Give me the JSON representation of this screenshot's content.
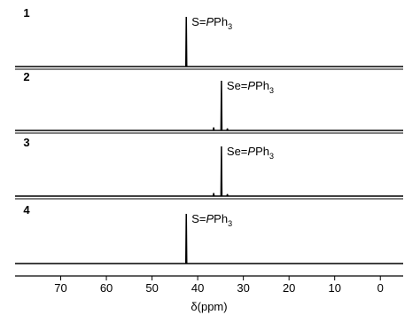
{
  "chart_data": {
    "type": "line",
    "xlabel": "δ(ppm)",
    "xlim": [
      80,
      -5
    ],
    "ylim": [
      0,
      1
    ],
    "xticks": [
      70,
      60,
      50,
      40,
      30,
      20,
      10,
      0
    ],
    "color": "#000000",
    "series": [
      {
        "name": "1",
        "annotation": [
          "S=",
          "P",
          "Ph",
          "3"
        ],
        "x": [
          80,
          42.6,
          42.5,
          42.4,
          -5
        ],
        "values": [
          0,
          0,
          1,
          0,
          0
        ]
      },
      {
        "name": "2",
        "annotation": [
          "Se=",
          "P",
          "Ph",
          "3"
        ],
        "x": [
          80,
          36.6,
          36.5,
          36.4,
          34.9,
          34.8,
          34.7,
          33.6,
          33.5,
          33.4,
          -5
        ],
        "values": [
          0,
          0,
          0.06,
          0,
          0,
          1,
          0,
          0,
          0.04,
          0,
          0
        ]
      },
      {
        "name": "3",
        "annotation": [
          "Se=",
          "P",
          "Ph",
          "3"
        ],
        "x": [
          80,
          36.6,
          36.5,
          36.4,
          34.9,
          34.8,
          34.7,
          33.6,
          33.5,
          33.4,
          -5
        ],
        "values": [
          0,
          0,
          0.06,
          0,
          0,
          1,
          0,
          0,
          0.04,
          0,
          0
        ]
      },
      {
        "name": "4",
        "annotation": [
          "S=",
          "P",
          "Ph",
          "3"
        ],
        "x": [
          80,
          42.6,
          42.5,
          42.4,
          -5
        ],
        "values": [
          0,
          0,
          1,
          0,
          0
        ]
      }
    ]
  }
}
